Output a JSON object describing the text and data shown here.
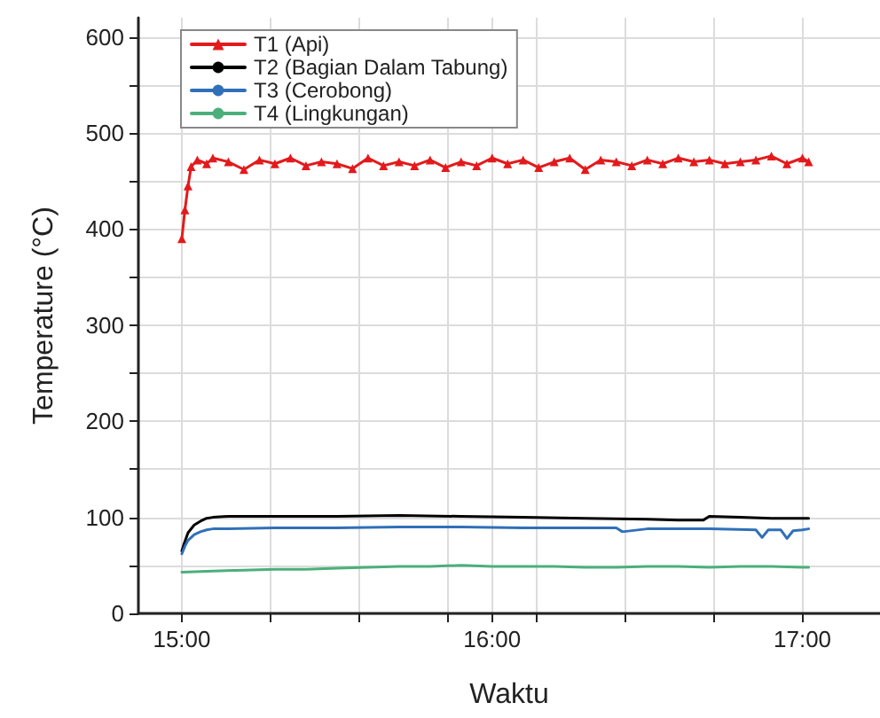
{
  "chart_data": {
    "type": "line",
    "xlabel": "Waktu",
    "ylabel": "Temperature (°C)",
    "xlim": [
      14.86,
      17.25
    ],
    "ylim": [
      0,
      620
    ],
    "xticks": [
      {
        "value": 15,
        "label": "15:00"
      },
      {
        "value": 15.286,
        "label": null
      },
      {
        "value": 15.571,
        "label": null
      },
      {
        "value": 15.857,
        "label": null
      },
      {
        "value": 16,
        "label": "16:00"
      },
      {
        "value": 16.143,
        "label": null
      },
      {
        "value": 16.429,
        "label": null
      },
      {
        "value": 16.714,
        "label": null
      },
      {
        "value": 17,
        "label": "17:00"
      }
    ],
    "yticks": [
      0,
      {
        "value": 50,
        "label": null
      },
      100,
      {
        "value": 150,
        "label": null
      },
      200,
      {
        "value": 250,
        "label": null
      },
      300,
      {
        "value": 350,
        "label": null
      },
      400,
      {
        "value": 450,
        "label": null
      },
      500,
      {
        "value": 550,
        "label": null
      },
      600
    ],
    "grid": true,
    "legend": "top left",
    "line_style": "solid",
    "series": [
      {
        "name": "T1 (Api)",
        "color": "#e31a1c",
        "marker": "triangle",
        "x": [
          15,
          15.01,
          15.02,
          15.03,
          15.05,
          15.08,
          15.1,
          15.15,
          15.2,
          15.25,
          15.3,
          15.35,
          15.4,
          15.45,
          15.5,
          15.55,
          15.6,
          15.65,
          15.7,
          15.75,
          15.8,
          15.85,
          15.9,
          15.95,
          16,
          16.05,
          16.1,
          16.15,
          16.2,
          16.25,
          16.3,
          16.35,
          16.4,
          16.45,
          16.5,
          16.55,
          16.6,
          16.65,
          16.7,
          16.75,
          16.8,
          16.85,
          16.9,
          16.95,
          17,
          17.02
        ],
        "values": [
          390,
          420,
          445,
          465,
          472,
          468,
          474,
          470,
          462,
          472,
          468,
          474,
          466,
          470,
          468,
          463,
          474,
          466,
          470,
          466,
          472,
          464,
          470,
          466,
          474,
          468,
          472,
          464,
          470,
          474,
          462,
          472,
          470,
          466,
          472,
          468,
          474,
          470,
          472,
          468,
          470,
          472,
          476,
          468,
          474,
          470
        ]
      },
      {
        "name": "T2 (Bagian Dalam Tabung)",
        "color": "#000000",
        "marker": "none",
        "x": [
          15,
          15.01,
          15.02,
          15.04,
          15.06,
          15.08,
          15.1,
          15.15,
          15.3,
          15.5,
          15.7,
          15.9,
          16.1,
          16.3,
          16.5,
          16.6,
          16.68,
          16.7,
          16.8,
          16.9,
          17,
          17.02
        ],
        "values": [
          65,
          75,
          84,
          92,
          96,
          99,
          100,
          101,
          101,
          101,
          102,
          101,
          100,
          99,
          98,
          97,
          97,
          101,
          100,
          99,
          99,
          99
        ]
      },
      {
        "name": "T3 (Cerobong)",
        "color": "#3070b8",
        "marker": "none",
        "x": [
          15,
          15.01,
          15.02,
          15.04,
          15.06,
          15.08,
          15.1,
          15.15,
          15.3,
          15.5,
          15.7,
          15.9,
          16.1,
          16.3,
          16.4,
          16.42,
          16.5,
          16.7,
          16.85,
          16.87,
          16.89,
          16.93,
          16.95,
          16.97,
          17,
          17.02
        ],
        "values": [
          62,
          70,
          76,
          82,
          85,
          87,
          88,
          88,
          89,
          89,
          90,
          90,
          89,
          89,
          89,
          85,
          88,
          88,
          87,
          79,
          87,
          87,
          78,
          86,
          87,
          88
        ]
      },
      {
        "name": "T4 (Lingkungan)",
        "color": "#4caf7a",
        "marker": "none",
        "x": [
          15,
          15.1,
          15.2,
          15.3,
          15.4,
          15.5,
          15.6,
          15.7,
          15.8,
          15.9,
          16,
          16.1,
          16.2,
          16.3,
          16.4,
          16.5,
          16.6,
          16.7,
          16.8,
          16.9,
          17,
          17.02
        ],
        "values": [
          43,
          44,
          45,
          46,
          46,
          47,
          48,
          49,
          49,
          50,
          49,
          49,
          49,
          48,
          48,
          49,
          49,
          48,
          49,
          49,
          48,
          48
        ]
      }
    ]
  }
}
